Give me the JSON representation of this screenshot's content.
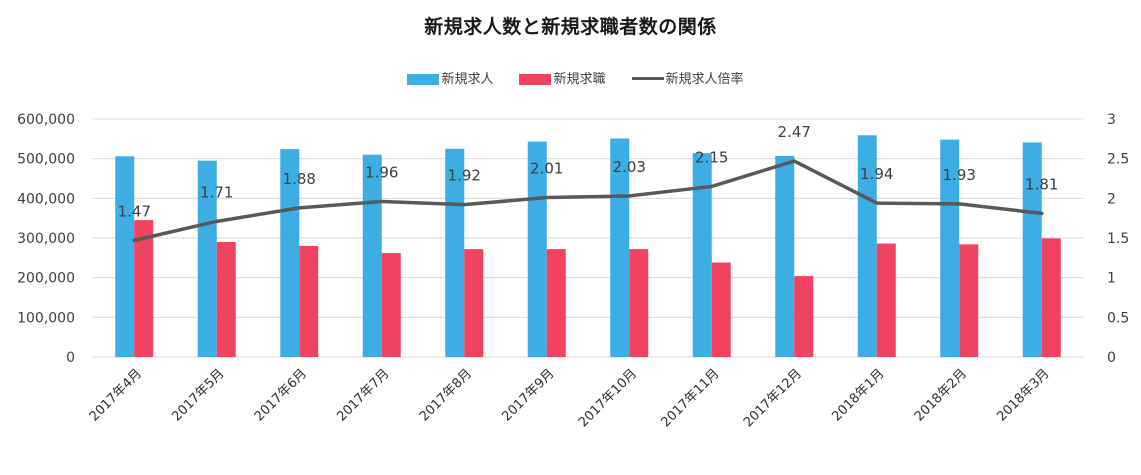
{
  "chart_data": {
    "type": "bar+line",
    "title": "新規求人数と新規求職者数の関係",
    "categories": [
      "2017年4月",
      "2017年5月",
      "2017年6月",
      "2017年7月",
      "2017年8月",
      "2017年9月",
      "2017年10月",
      "2017年11月",
      "2017年12月",
      "2018年1月",
      "2018年2月",
      "2018年3月"
    ],
    "series": [
      {
        "name": "新規求人",
        "type": "bar",
        "axis": "left",
        "color": "#3daee3",
        "values": [
          506000,
          495000,
          524000,
          510000,
          525000,
          543000,
          551000,
          514000,
          507000,
          559000,
          548000,
          541000
        ]
      },
      {
        "name": "新規求職",
        "type": "bar",
        "axis": "left",
        "color": "#f24262",
        "values": [
          345000,
          290000,
          280000,
          262000,
          272000,
          272000,
          272000,
          238000,
          204000,
          286000,
          284000,
          299000
        ]
      },
      {
        "name": "新規求人倍率",
        "type": "line",
        "axis": "right",
        "color": "#595959",
        "values": [
          1.47,
          1.71,
          1.88,
          1.96,
          1.92,
          2.01,
          2.03,
          2.15,
          2.47,
          1.94,
          1.93,
          1.81
        ],
        "labels": [
          "1.47",
          "1.71",
          "1.88",
          "1.96",
          "1.92",
          "2.01",
          "2.03",
          "2.15",
          "2.47",
          "1.94",
          "1.93",
          "1.81"
        ]
      }
    ],
    "y_left": {
      "min": 0,
      "max": 600000,
      "ticks": [
        "0",
        "100,000",
        "200,000",
        "300,000",
        "400,000",
        "500,000",
        "600,000"
      ]
    },
    "y_right": {
      "min": 0,
      "max": 3,
      "ticks": [
        "0",
        "0.5",
        "1",
        "1.5",
        "2",
        "2.5",
        "3"
      ]
    },
    "xlabel": "",
    "ylabel": "",
    "grid": true,
    "legend_position": "top"
  },
  "legend": {
    "items": [
      {
        "label": "新規求人",
        "kind": "bar",
        "color": "#3daee3"
      },
      {
        "label": "新規求職",
        "kind": "bar",
        "color": "#f24262"
      },
      {
        "label": "新規求人倍率",
        "kind": "line",
        "color": "#595959"
      }
    ]
  }
}
